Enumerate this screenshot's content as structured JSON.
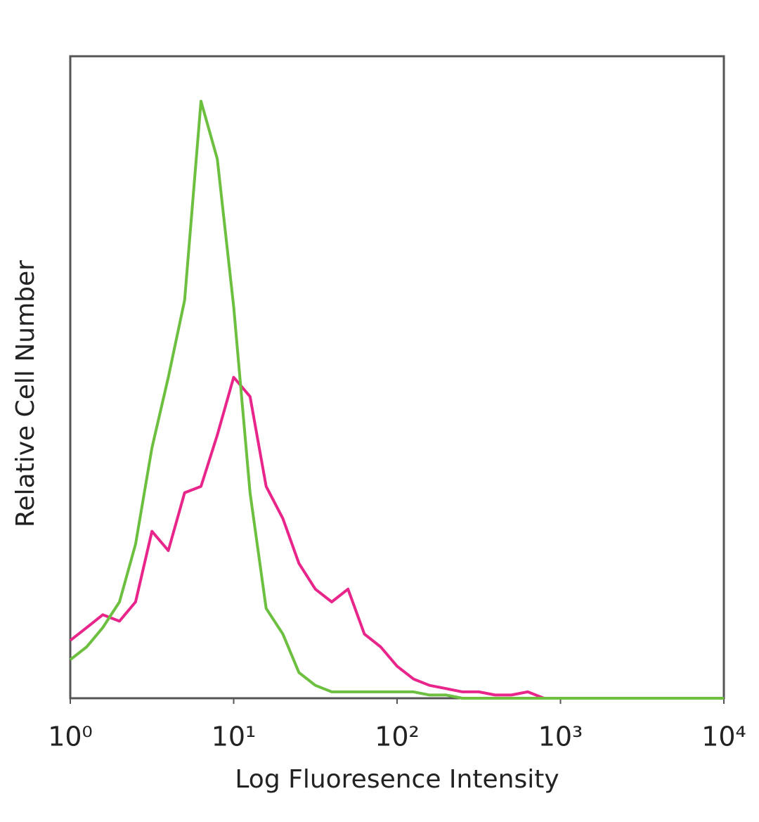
{
  "chart_data": {
    "type": "line",
    "x_label": "Log Fluoresence Intensity",
    "y_label": "Relative Cell Number",
    "xscale": "log",
    "xlim": [
      1,
      10000
    ],
    "xticks": [
      {
        "value": 1,
        "label": "10⁰"
      },
      {
        "value": 10,
        "label": "10¹"
      },
      {
        "value": 100,
        "label": "10²"
      },
      {
        "value": 1000,
        "label": "10³"
      },
      {
        "value": 10000,
        "label": "10⁴"
      }
    ],
    "ylim": [
      0,
      100
    ],
    "x": [
      1,
      1.26,
      1.58,
      2,
      2.51,
      3.16,
      3.98,
      5.01,
      6.31,
      7.94,
      10,
      12.6,
      15.8,
      20,
      25.1,
      31.6,
      39.8,
      50.1,
      63.1,
      79.4,
      100,
      126,
      158,
      200,
      251,
      316,
      398,
      501,
      631,
      794,
      1000,
      1259,
      1585,
      1995,
      2512,
      3162,
      3981,
      5012,
      6310,
      7943,
      10000
    ],
    "series": [
      {
        "color": "#6cbf3f",
        "values": [
          6,
          8,
          11,
          15,
          24,
          39,
          50,
          62,
          93,
          84,
          61,
          32,
          14,
          10,
          4,
          2,
          1,
          1,
          1,
          1,
          1,
          1,
          0.5,
          0.5,
          0,
          0,
          0,
          0,
          0,
          0,
          0,
          0,
          0,
          0,
          0,
          0,
          0,
          0,
          0,
          0,
          0
        ]
      },
      {
        "color": "#e8258a",
        "values": [
          9,
          11,
          13,
          12,
          15,
          26,
          23,
          32,
          33,
          41,
          50,
          47,
          33,
          28,
          21,
          17,
          15,
          17,
          10,
          8,
          5,
          3,
          2,
          1.5,
          1,
          1,
          0.5,
          0.5,
          1,
          0,
          0,
          0,
          0,
          0,
          0,
          0,
          0,
          0,
          0,
          0,
          0
        ]
      }
    ]
  }
}
